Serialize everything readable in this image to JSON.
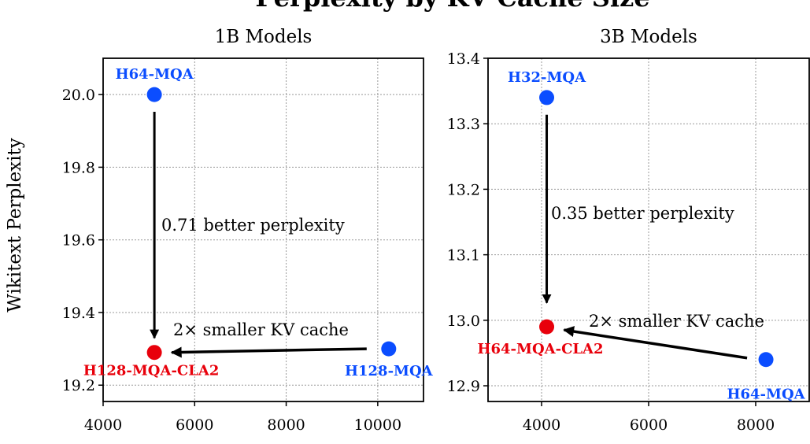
{
  "chart_data": {
    "title": "Perplexity by KV Cache Size",
    "ylabel": "Wikitext Perplexity",
    "colors": {
      "mqa": "#0b4dff",
      "cla": "#e8000b"
    },
    "panels": [
      {
        "type": "scatter",
        "title": "1B Models",
        "xlim": [
          4000,
          11000
        ],
        "ylim": [
          19.155,
          20.1
        ],
        "xticks": [
          "4000",
          "6000",
          "8000",
          "10000"
        ],
        "yticks": [
          "19.2",
          "19.4",
          "19.6",
          "19.8",
          "20.0"
        ],
        "grid": true,
        "points": [
          {
            "label": "H64-MQA",
            "x": 5120,
            "y": 20.0,
            "color": "blue"
          },
          {
            "label": "H128-MQA",
            "x": 10240,
            "y": 19.3,
            "color": "blue"
          },
          {
            "label": "H128-MQA-CLA2",
            "x": 5120,
            "y": 19.29,
            "color": "red"
          }
        ],
        "annotations": [
          "0.71 better perplexity",
          "2× smaller KV cache"
        ]
      },
      {
        "type": "scatter",
        "title": "3B Models",
        "xlim": [
          3000,
          9000
        ],
        "ylim": [
          12.876,
          13.4
        ],
        "xticks": [
          "4000",
          "6000",
          "8000"
        ],
        "yticks": [
          "12.9",
          "13.0",
          "13.1",
          "13.2",
          "13.3",
          "13.4"
        ],
        "grid": true,
        "points": [
          {
            "label": "H32-MQA",
            "x": 4096,
            "y": 13.34,
            "color": "blue"
          },
          {
            "label": "H64-MQA",
            "x": 8192,
            "y": 12.94,
            "color": "blue"
          },
          {
            "label": "H64-MQA-CLA2",
            "x": 4096,
            "y": 12.99,
            "color": "red"
          }
        ],
        "annotations": [
          "0.35 better perplexity",
          "2× smaller KV cache"
        ]
      }
    ]
  }
}
